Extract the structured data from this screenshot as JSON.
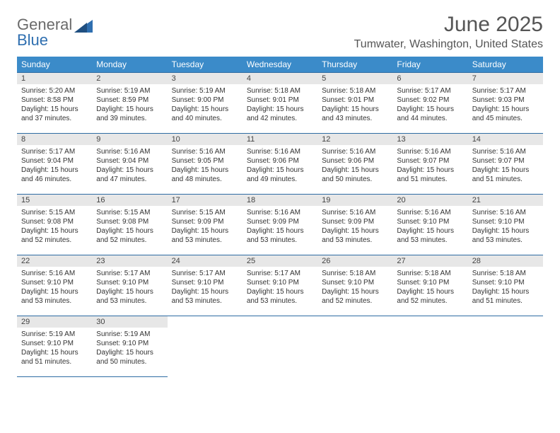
{
  "logo": {
    "text1": "General",
    "text2": "Blue"
  },
  "title": "June 2025",
  "location": "Tumwater, Washington, United States",
  "colors": {
    "header_bg": "#3b8bc9",
    "header_text": "#ffffff",
    "border": "#2e6ca3",
    "daynum_bg": "#e7e7e7",
    "logo_gray": "#6a6a6a",
    "logo_blue": "#2f6fb0"
  },
  "weekdays": [
    "Sunday",
    "Monday",
    "Tuesday",
    "Wednesday",
    "Thursday",
    "Friday",
    "Saturday"
  ],
  "days": [
    {
      "n": "1",
      "sr": "5:20 AM",
      "ss": "8:58 PM",
      "dl": "15 hours and 37 minutes."
    },
    {
      "n": "2",
      "sr": "5:19 AM",
      "ss": "8:59 PM",
      "dl": "15 hours and 39 minutes."
    },
    {
      "n": "3",
      "sr": "5:19 AM",
      "ss": "9:00 PM",
      "dl": "15 hours and 40 minutes."
    },
    {
      "n": "4",
      "sr": "5:18 AM",
      "ss": "9:01 PM",
      "dl": "15 hours and 42 minutes."
    },
    {
      "n": "5",
      "sr": "5:18 AM",
      "ss": "9:01 PM",
      "dl": "15 hours and 43 minutes."
    },
    {
      "n": "6",
      "sr": "5:17 AM",
      "ss": "9:02 PM",
      "dl": "15 hours and 44 minutes."
    },
    {
      "n": "7",
      "sr": "5:17 AM",
      "ss": "9:03 PM",
      "dl": "15 hours and 45 minutes."
    },
    {
      "n": "8",
      "sr": "5:17 AM",
      "ss": "9:04 PM",
      "dl": "15 hours and 46 minutes."
    },
    {
      "n": "9",
      "sr": "5:16 AM",
      "ss": "9:04 PM",
      "dl": "15 hours and 47 minutes."
    },
    {
      "n": "10",
      "sr": "5:16 AM",
      "ss": "9:05 PM",
      "dl": "15 hours and 48 minutes."
    },
    {
      "n": "11",
      "sr": "5:16 AM",
      "ss": "9:06 PM",
      "dl": "15 hours and 49 minutes."
    },
    {
      "n": "12",
      "sr": "5:16 AM",
      "ss": "9:06 PM",
      "dl": "15 hours and 50 minutes."
    },
    {
      "n": "13",
      "sr": "5:16 AM",
      "ss": "9:07 PM",
      "dl": "15 hours and 51 minutes."
    },
    {
      "n": "14",
      "sr": "5:16 AM",
      "ss": "9:07 PM",
      "dl": "15 hours and 51 minutes."
    },
    {
      "n": "15",
      "sr": "5:15 AM",
      "ss": "9:08 PM",
      "dl": "15 hours and 52 minutes."
    },
    {
      "n": "16",
      "sr": "5:15 AM",
      "ss": "9:08 PM",
      "dl": "15 hours and 52 minutes."
    },
    {
      "n": "17",
      "sr": "5:15 AM",
      "ss": "9:09 PM",
      "dl": "15 hours and 53 minutes."
    },
    {
      "n": "18",
      "sr": "5:16 AM",
      "ss": "9:09 PM",
      "dl": "15 hours and 53 minutes."
    },
    {
      "n": "19",
      "sr": "5:16 AM",
      "ss": "9:09 PM",
      "dl": "15 hours and 53 minutes."
    },
    {
      "n": "20",
      "sr": "5:16 AM",
      "ss": "9:10 PM",
      "dl": "15 hours and 53 minutes."
    },
    {
      "n": "21",
      "sr": "5:16 AM",
      "ss": "9:10 PM",
      "dl": "15 hours and 53 minutes."
    },
    {
      "n": "22",
      "sr": "5:16 AM",
      "ss": "9:10 PM",
      "dl": "15 hours and 53 minutes."
    },
    {
      "n": "23",
      "sr": "5:17 AM",
      "ss": "9:10 PM",
      "dl": "15 hours and 53 minutes."
    },
    {
      "n": "24",
      "sr": "5:17 AM",
      "ss": "9:10 PM",
      "dl": "15 hours and 53 minutes."
    },
    {
      "n": "25",
      "sr": "5:17 AM",
      "ss": "9:10 PM",
      "dl": "15 hours and 53 minutes."
    },
    {
      "n": "26",
      "sr": "5:18 AM",
      "ss": "9:10 PM",
      "dl": "15 hours and 52 minutes."
    },
    {
      "n": "27",
      "sr": "5:18 AM",
      "ss": "9:10 PM",
      "dl": "15 hours and 52 minutes."
    },
    {
      "n": "28",
      "sr": "5:18 AM",
      "ss": "9:10 PM",
      "dl": "15 hours and 51 minutes."
    },
    {
      "n": "29",
      "sr": "5:19 AM",
      "ss": "9:10 PM",
      "dl": "15 hours and 51 minutes."
    },
    {
      "n": "30",
      "sr": "5:19 AM",
      "ss": "9:10 PM",
      "dl": "15 hours and 50 minutes."
    }
  ],
  "labels": {
    "sunrise": "Sunrise: ",
    "sunset": "Sunset: ",
    "daylight": "Daylight: "
  }
}
